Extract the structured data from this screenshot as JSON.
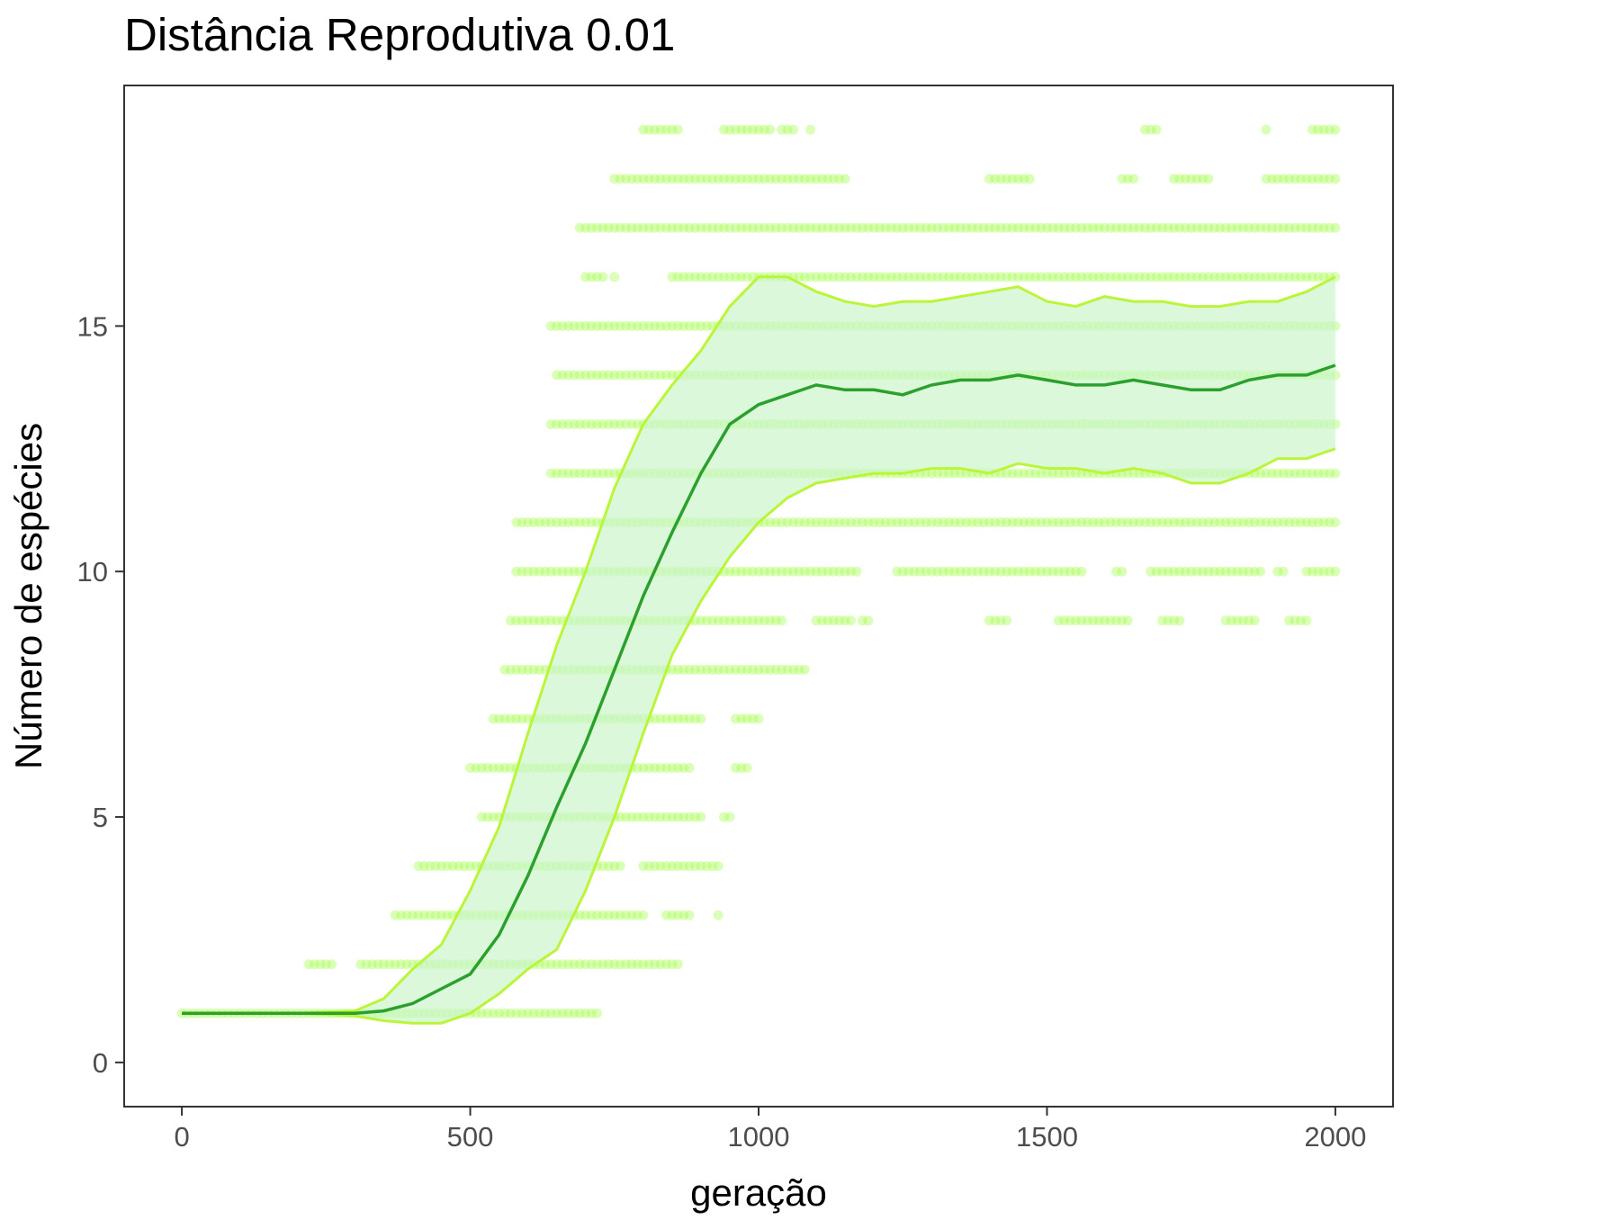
{
  "chart_data": {
    "type": "line",
    "title": "Distância Reprodutiva 0.01",
    "xlabel": "geração",
    "ylabel": "Número de espécies",
    "xlim": [
      -100,
      2100
    ],
    "ylim": [
      -0.9,
      19.9
    ],
    "x_ticks": [
      0,
      500,
      1000,
      1500,
      2000
    ],
    "x_tick_labels": [
      "0",
      "500",
      "1000",
      "1500",
      "2000"
    ],
    "y_ticks": [
      0,
      5,
      10,
      15
    ],
    "y_tick_labels": [
      "0",
      "5",
      "10",
      "15"
    ],
    "grid": false,
    "legend": "none",
    "colors": {
      "points": "#99ff33",
      "band_fill": "#ccf5cc",
      "band_edge": "#bbf53a",
      "mean_line": "#2ca02c",
      "panel_border": "#333333"
    },
    "series": [
      {
        "role": "mean",
        "x": [
          0,
          100,
          200,
          300,
          350,
          400,
          450,
          500,
          550,
          600,
          650,
          700,
          750,
          800,
          850,
          900,
          950,
          1000,
          1050,
          1100,
          1150,
          1200,
          1250,
          1300,
          1350,
          1400,
          1450,
          1500,
          1550,
          1600,
          1650,
          1700,
          1750,
          1800,
          1850,
          1900,
          1950,
          2000
        ],
        "y": [
          1.0,
          1.0,
          1.0,
          1.0,
          1.05,
          1.2,
          1.5,
          1.8,
          2.6,
          3.8,
          5.2,
          6.5,
          8.0,
          9.5,
          10.8,
          12.0,
          13.0,
          13.4,
          13.6,
          13.8,
          13.7,
          13.7,
          13.6,
          13.8,
          13.9,
          13.9,
          14.0,
          13.9,
          13.8,
          13.8,
          13.9,
          13.8,
          13.7,
          13.7,
          13.9,
          14.0,
          14.0,
          14.2
        ]
      },
      {
        "role": "upper",
        "x": [
          0,
          100,
          200,
          300,
          350,
          400,
          450,
          500,
          550,
          600,
          650,
          700,
          750,
          800,
          850,
          900,
          950,
          1000,
          1050,
          1100,
          1150,
          1200,
          1250,
          1300,
          1350,
          1400,
          1450,
          1500,
          1550,
          1600,
          1650,
          1700,
          1750,
          1800,
          1850,
          1900,
          1950,
          2000
        ],
        "y": [
          1.0,
          1.0,
          1.0,
          1.05,
          1.3,
          1.9,
          2.4,
          3.5,
          4.8,
          6.7,
          8.5,
          10.0,
          11.7,
          13.0,
          13.8,
          14.5,
          15.4,
          16.0,
          16.0,
          15.7,
          15.5,
          15.4,
          15.5,
          15.5,
          15.6,
          15.7,
          15.8,
          15.5,
          15.4,
          15.6,
          15.5,
          15.5,
          15.4,
          15.4,
          15.5,
          15.5,
          15.7,
          16.0
        ]
      },
      {
        "role": "lower",
        "x": [
          0,
          100,
          200,
          300,
          350,
          400,
          450,
          500,
          550,
          600,
          650,
          700,
          750,
          800,
          850,
          900,
          950,
          1000,
          1050,
          1100,
          1150,
          1200,
          1250,
          1300,
          1350,
          1400,
          1450,
          1500,
          1550,
          1600,
          1650,
          1700,
          1750,
          1800,
          1850,
          1900,
          1950,
          2000
        ],
        "y": [
          1.0,
          1.0,
          1.0,
          0.95,
          0.85,
          0.8,
          0.8,
          1.0,
          1.4,
          1.9,
          2.3,
          3.5,
          5.0,
          6.7,
          8.3,
          9.4,
          10.3,
          11.0,
          11.5,
          11.8,
          11.9,
          12.0,
          12.0,
          12.1,
          12.1,
          12.0,
          12.2,
          12.1,
          12.1,
          12.0,
          12.1,
          12.0,
          11.8,
          11.8,
          12.0,
          12.3,
          12.3,
          12.5
        ]
      }
    ],
    "point_bands": [
      {
        "y": 1,
        "x": [
          [
            0,
            720
          ]
        ]
      },
      {
        "y": 2,
        "x": [
          [
            220,
            260
          ],
          [
            310,
            860
          ]
        ]
      },
      {
        "y": 3,
        "x": [
          [
            370,
            800
          ],
          [
            840,
            880
          ],
          [
            930,
            930
          ]
        ]
      },
      {
        "y": 4,
        "x": [
          [
            410,
            760
          ],
          [
            800,
            930
          ]
        ]
      },
      {
        "y": 5,
        "x": [
          [
            520,
            900
          ],
          [
            940,
            950
          ]
        ]
      },
      {
        "y": 6,
        "x": [
          [
            500,
            880
          ],
          [
            960,
            980
          ]
        ]
      },
      {
        "y": 7,
        "x": [
          [
            540,
            900
          ],
          [
            960,
            1000
          ]
        ]
      },
      {
        "y": 8,
        "x": [
          [
            560,
            1080
          ]
        ]
      },
      {
        "y": 9,
        "x": [
          [
            570,
            1040
          ],
          [
            1100,
            1160
          ],
          [
            1180,
            1190
          ],
          [
            1400,
            1430
          ],
          [
            1520,
            1640
          ],
          [
            1700,
            1730
          ],
          [
            1810,
            1860
          ],
          [
            1920,
            1950
          ]
        ]
      },
      {
        "y": 10,
        "x": [
          [
            580,
            1170
          ],
          [
            1240,
            1560
          ],
          [
            1620,
            1630
          ],
          [
            1680,
            1870
          ],
          [
            1900,
            1910
          ],
          [
            1950,
            2000
          ]
        ]
      },
      {
        "y": 11,
        "x": [
          [
            580,
            2000
          ]
        ]
      },
      {
        "y": 12,
        "x": [
          [
            640,
            2000
          ]
        ]
      },
      {
        "y": 13,
        "x": [
          [
            640,
            2000
          ]
        ]
      },
      {
        "y": 14,
        "x": [
          [
            650,
            2000
          ]
        ]
      },
      {
        "y": 15,
        "x": [
          [
            640,
            2000
          ]
        ]
      },
      {
        "y": 16,
        "x": [
          [
            700,
            730
          ],
          [
            750,
            750
          ],
          [
            850,
            2000
          ]
        ]
      },
      {
        "y": 17,
        "x": [
          [
            690,
            2000
          ]
        ]
      },
      {
        "y": 18,
        "x": [
          [
            750,
            1150
          ],
          [
            1400,
            1470
          ],
          [
            1630,
            1650
          ],
          [
            1720,
            1780
          ],
          [
            1880,
            2000
          ]
        ]
      },
      {
        "y": 19,
        "x": [
          [
            800,
            860
          ],
          [
            940,
            1020
          ],
          [
            1040,
            1060
          ],
          [
            1090,
            1090
          ],
          [
            1670,
            1690
          ],
          [
            1880,
            1880
          ],
          [
            1960,
            2000
          ]
        ]
      }
    ]
  }
}
